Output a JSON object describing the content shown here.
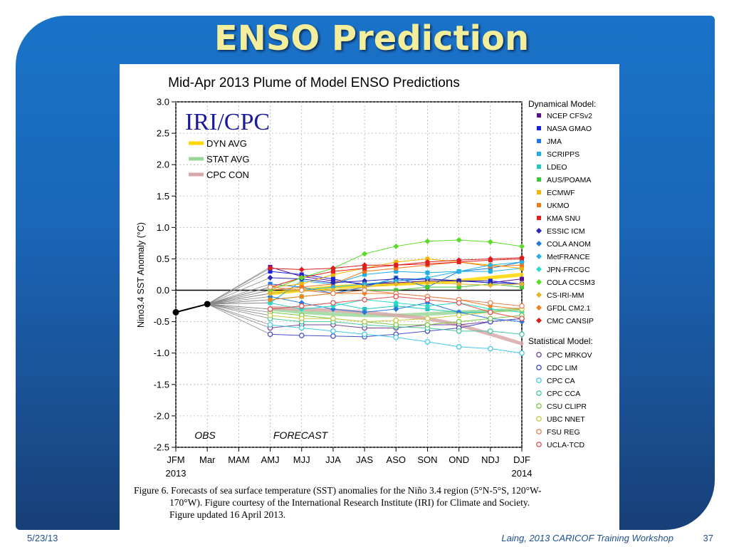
{
  "slide": {
    "title": "ENSO Prediction",
    "footer_date": "5/23/13",
    "footer_text": "Laing, 2013 CARICOF Training Workshop",
    "page_number": "37"
  },
  "caption": {
    "line1": "Figure 6. Forecasts of sea surface temperature (SST) anomalies for the Niño 3.4 region (5°N-5°S, 120°W-",
    "line2": "170°W).  Figure courtesy of the International Research Institute (IRI) for Climate and Society.",
    "line3": "Figure updated 16 April 2013."
  },
  "colors": {
    "accent_title": "#f3ee9c",
    "background": "#1a66b8"
  },
  "chart_data": {
    "type": "line",
    "title": "Mid-Apr 2013 Plume of Model ENSO Predictions",
    "logo": "IRI/CPC",
    "ylabel": "Nino3.4 SST Anomaly (°C)",
    "ylim": [
      -2.5,
      3.0
    ],
    "yticks": [
      "3.0",
      "2.5",
      "2.0",
      "1.5",
      "1.0",
      "0.5",
      "0.0",
      "-0.5",
      "-1.0",
      "-1.5",
      "-2.0",
      "-2.5"
    ],
    "categories": [
      "JFM",
      "Mar",
      "MAM",
      "AMJ",
      "MJJ",
      "JJA",
      "JAS",
      "ASO",
      "SON",
      "OND",
      "NDJ",
      "DJF"
    ],
    "year_labels": [
      "2013",
      "2014"
    ],
    "annotations": [
      "OBS",
      "FORECAST"
    ],
    "observed": [
      -0.35,
      -0.22
    ],
    "averages": [
      {
        "name": "DYN AVG",
        "color": "#ffd700",
        "values": [
          -0.05,
          0.0,
          0.05,
          0.08,
          0.1,
          0.12,
          0.15,
          0.2,
          0.25
        ]
      },
      {
        "name": "STAT AVG",
        "color": "#9bd79b",
        "values": [
          -0.3,
          -0.35,
          -0.38,
          -0.4,
          -0.4,
          -0.38,
          -0.35,
          -0.33,
          -0.3
        ]
      },
      {
        "name": "CPC CON",
        "color": "#d8a8a8",
        "values": [
          -0.28,
          -0.3,
          -0.32,
          -0.35,
          -0.4,
          -0.45,
          -0.55,
          -0.7,
          -0.85
        ]
      }
    ],
    "legend_title_dynamical": "Dynamical Model:",
    "legend_title_statistical": "Statistical Model:",
    "dynamical_models": [
      {
        "name": "NCEP CFSv2",
        "color": "#5b0d91",
        "marker": "square",
        "values": [
          0.37,
          0.22,
          0.15,
          0.1,
          0.12,
          0.15,
          0.15,
          0.12,
          0.18
        ]
      },
      {
        "name": "NASA GMAO",
        "color": "#1a22d6",
        "marker": "square",
        "values": [
          0.3,
          0.25,
          0.18,
          0.08,
          0.15,
          0.18,
          0.15,
          0.15,
          0.1
        ]
      },
      {
        "name": "JMA",
        "color": "#1e78e6",
        "marker": "square",
        "values": [
          0.1,
          0.05,
          -0.05,
          0.05,
          0.2,
          0.05,
          0.3,
          0.35,
          0.45
        ]
      },
      {
        "name": "SCRIPPS",
        "color": "#1eaee6",
        "marker": "square",
        "values": [
          -0.2,
          0.15,
          0.1,
          0.25,
          0.3,
          0.28,
          0.3,
          0.3,
          0.35
        ]
      },
      {
        "name": "LDEO",
        "color": "#1ec8c0",
        "marker": "square",
        "values": [
          -0.3,
          -0.25,
          -0.2,
          -0.3,
          -0.25,
          -0.3,
          -0.35,
          -0.35,
          -0.3
        ]
      },
      {
        "name": "AUS/POAMA",
        "color": "#3cc832",
        "marker": "square",
        "values": [
          -0.15,
          -0.1,
          -0.05,
          0.0,
          0.0,
          0.05,
          0.05,
          0.1,
          0.05
        ]
      },
      {
        "name": "ECMWF",
        "color": "#f5b400",
        "marker": "square",
        "values": [
          0.05,
          0.1,
          0.25,
          0.35,
          0.45,
          0.5,
          0.45,
          0.4,
          0.35
        ]
      },
      {
        "name": "UKMO",
        "color": "#f57818",
        "marker": "square",
        "values": [
          0.0,
          0.05,
          0.1,
          0.3,
          0.35,
          0.4,
          0.45,
          0.38,
          0.4
        ]
      },
      {
        "name": "KMA SNU",
        "color": "#e61e1e",
        "marker": "square",
        "values": [
          0.05,
          0.2,
          0.3,
          0.35,
          0.4,
          0.42,
          0.45,
          0.48,
          0.5
        ]
      },
      {
        "name": "ESSIC ICM",
        "color": "#2828b4",
        "marker": "diamond",
        "values": [
          0.2,
          0.18,
          0.12,
          0.15,
          0.18,
          0.18,
          0.15,
          0.12,
          0.1
        ]
      },
      {
        "name": "COLA ANOM",
        "color": "#2878dc",
        "marker": "diamond",
        "values": [
          -0.1,
          -0.2,
          -0.3,
          -0.35,
          -0.3,
          -0.2,
          -0.35,
          -0.45,
          -0.5
        ]
      },
      {
        "name": "MetFRANCE",
        "color": "#28b4e6",
        "marker": "diamond",
        "values": [
          -0.05,
          0.0,
          0.05,
          0.1,
          0.15,
          0.2,
          0.3,
          0.4,
          0.45
        ]
      },
      {
        "name": "JPN-FRCGC",
        "color": "#28dcc8",
        "marker": "diamond",
        "values": [
          -0.2,
          -0.3,
          -0.25,
          -0.15,
          -0.2,
          -0.25,
          -0.2,
          -0.3,
          -0.35
        ]
      },
      {
        "name": "COLA CCSM3",
        "color": "#5adc28",
        "marker": "diamond",
        "values": [
          0.0,
          0.2,
          0.35,
          0.58,
          0.7,
          0.78,
          0.8,
          0.77,
          0.7
        ]
      },
      {
        "name": "CS-IRI-MM",
        "color": "#e6b428",
        "marker": "diamond",
        "values": [
          -0.05,
          0.0,
          0.0,
          0.05,
          0.1,
          0.12,
          0.1,
          0.08,
          0.1
        ]
      },
      {
        "name": "GFDL CM2.1",
        "color": "#f08228",
        "marker": "diamond",
        "values": [
          -0.15,
          -0.1,
          -0.05,
          -0.05,
          -0.05,
          -0.1,
          -0.15,
          -0.25,
          -0.3
        ]
      },
      {
        "name": "CMC CANSIP",
        "color": "#dc1e1e",
        "marker": "diamond",
        "values": [
          0.35,
          0.33,
          0.35,
          0.4,
          0.4,
          0.45,
          0.48,
          0.5,
          0.52
        ]
      }
    ],
    "statistical_models": [
      {
        "name": "CPC MRKOV",
        "color": "#7846a0",
        "marker": "circle",
        "values": [
          -0.6,
          -0.55,
          -0.55,
          -0.6,
          -0.6,
          -0.55,
          -0.55,
          -0.5,
          -0.45
        ]
      },
      {
        "name": "CDC LIM",
        "color": "#4650c8",
        "marker": "circle",
        "values": [
          -0.7,
          -0.72,
          -0.73,
          -0.74,
          -0.7,
          -0.65,
          -0.6,
          -0.5,
          -0.45
        ]
      },
      {
        "name": "CPC CA",
        "color": "#46c8e6",
        "marker": "circle",
        "values": [
          -0.55,
          -0.6,
          -0.65,
          -0.7,
          -0.75,
          -0.82,
          -0.9,
          -0.93,
          -1.0
        ]
      },
      {
        "name": "CPC CCA",
        "color": "#46c8a0",
        "marker": "circle",
        "values": [
          -0.45,
          -0.5,
          -0.5,
          -0.55,
          -0.58,
          -0.6,
          -0.65,
          -0.65,
          -0.7
        ]
      },
      {
        "name": "CSU CLIPR",
        "color": "#78c846",
        "marker": "circle",
        "values": [
          -0.35,
          -0.4,
          -0.45,
          -0.5,
          -0.55,
          -0.55,
          -0.5,
          -0.45,
          -0.4
        ]
      },
      {
        "name": "UBC NNET",
        "color": "#c8c846",
        "marker": "circle",
        "values": [
          -0.4,
          -0.45,
          -0.45,
          -0.5,
          -0.48,
          -0.45,
          -0.4,
          -0.35,
          -0.3
        ]
      },
      {
        "name": "FSU REG",
        "color": "#e6825a",
        "marker": "circle",
        "values": [
          0.05,
          0.0,
          -0.05,
          0.0,
          -0.05,
          -0.1,
          -0.15,
          -0.2,
          -0.25
        ]
      },
      {
        "name": "UCLA-TCD",
        "color": "#e65050",
        "marker": "circle",
        "values": [
          -0.3,
          -0.25,
          -0.2,
          -0.15,
          -0.1,
          -0.15,
          -0.2,
          -0.35,
          -0.45
        ]
      }
    ]
  }
}
